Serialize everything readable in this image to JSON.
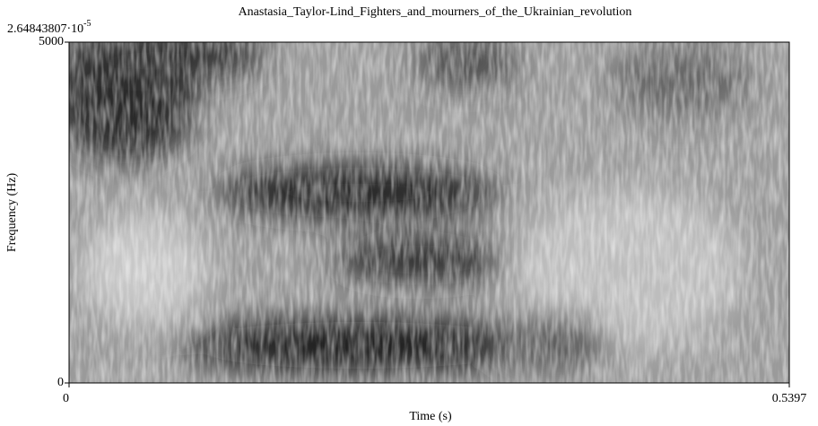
{
  "chart_data": {
    "type": "spectrogram",
    "title": "Anastasia_Taylor-Lind_Fighters_and_mourners_of_the_Ukrainian_revolution",
    "annotation": {
      "mantissa": "2.64843807·10",
      "exponent": "-5"
    },
    "x_label": "Time (s)",
    "y_label": "Frequency (Hz)",
    "xlim": [
      0,
      0.5397
    ],
    "xticks": [
      0,
      0.5397
    ],
    "ylim": [
      0,
      5000
    ],
    "yticks": [
      0,
      5000
    ]
  }
}
